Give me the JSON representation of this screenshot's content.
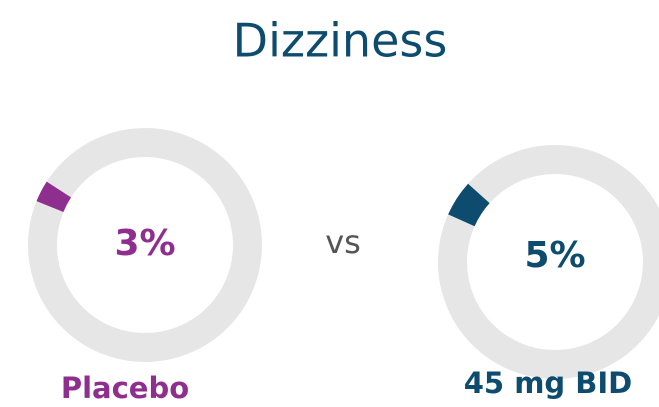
{
  "title": "Dizziness",
  "separator": "vs",
  "chart_data": [
    {
      "type": "donut",
      "categories": [
        "Placebo"
      ],
      "values": [
        3
      ],
      "value_labels": [
        "3%"
      ],
      "color": "#8e2f8f"
    },
    {
      "type": "donut",
      "categories": [
        "45 mg BID"
      ],
      "values": [
        5
      ],
      "value_labels": [
        "5%"
      ],
      "color": "#0d4c6e"
    }
  ]
}
